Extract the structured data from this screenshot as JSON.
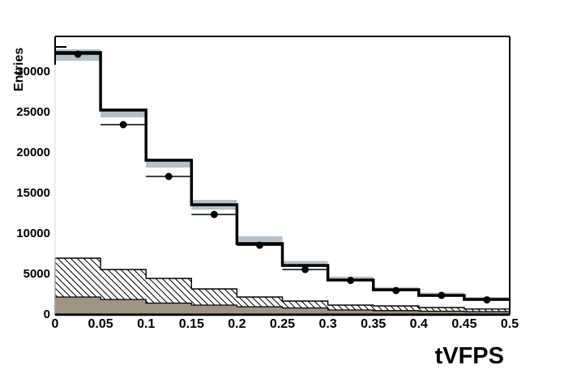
{
  "figure": {
    "background": "#ffffff",
    "frame_color": "#000000"
  },
  "chart_data": {
    "type": "bar",
    "subtype": "overlaid-histograms",
    "title": "",
    "xlabel": "tVFPS",
    "ylabel": "Entries",
    "xlim": [
      0,
      0.5
    ],
    "ylim": [
      0,
      34300
    ],
    "grid": false,
    "legend": "none",
    "bin_edges": [
      0,
      0.05,
      0.1,
      0.15,
      0.2,
      0.25,
      0.3,
      0.35,
      0.4,
      0.45,
      0.5
    ],
    "x_ticks": [
      {
        "v": 0,
        "label": "0"
      },
      {
        "v": 0.05,
        "label": "0.05"
      },
      {
        "v": 0.1,
        "label": "0.1"
      },
      {
        "v": 0.15,
        "label": "0.15"
      },
      {
        "v": 0.2,
        "label": "0.2"
      },
      {
        "v": 0.25,
        "label": "0.25"
      },
      {
        "v": 0.3,
        "label": "0.3"
      },
      {
        "v": 0.35,
        "label": "0.35"
      },
      {
        "v": 0.4,
        "label": "0.4"
      },
      {
        "v": 0.45,
        "label": "0.45"
      },
      {
        "v": 0.5,
        "label": "0.5"
      }
    ],
    "y_ticks": [
      {
        "v": 0,
        "label": "0"
      },
      {
        "v": 5000,
        "label": "5000"
      },
      {
        "v": 10000,
        "label": "10000"
      },
      {
        "v": 15000,
        "label": "15000"
      },
      {
        "v": 20000,
        "label": "20000"
      },
      {
        "v": 25000,
        "label": "25000"
      },
      {
        "v": 30000,
        "label": "30000"
      }
    ],
    "y_minor_tick_visible": 33000,
    "series": [
      {
        "name": "total-mc-line",
        "type": "step",
        "color": "#000000",
        "values": [
          32300,
          25200,
          19000,
          13500,
          8700,
          6000,
          4200,
          3000,
          2300,
          1800
        ]
      },
      {
        "name": "uncertainty-band",
        "type": "band",
        "color": "#b4c1c9",
        "low": [
          31300,
          24300,
          18100,
          12900,
          8600,
          5800,
          4100,
          2850,
          2100,
          1650
        ],
        "high": [
          32700,
          25400,
          19200,
          14100,
          9600,
          6550,
          4630,
          3300,
          2650,
          2100
        ]
      },
      {
        "name": "hatched-background",
        "type": "step-filled",
        "fill": "hatch-diagonal",
        "color": "#000000",
        "values": [
          6900,
          5500,
          4400,
          3100,
          2100,
          1600,
          1100,
          1000,
          800,
          620
        ]
      },
      {
        "name": "solid-background",
        "type": "step-filled",
        "fill": "solid",
        "color": "#a09384",
        "values": [
          2100,
          1800,
          1350,
          1100,
          900,
          750,
          500,
          420,
          350,
          300
        ]
      },
      {
        "name": "data-points",
        "type": "points",
        "marker": "filled-circle",
        "color": "#000000",
        "x_error": "bin-width",
        "values": [
          32100,
          23400,
          17000,
          12300,
          8500,
          5500,
          4150,
          2900,
          2300,
          1750
        ]
      }
    ]
  }
}
